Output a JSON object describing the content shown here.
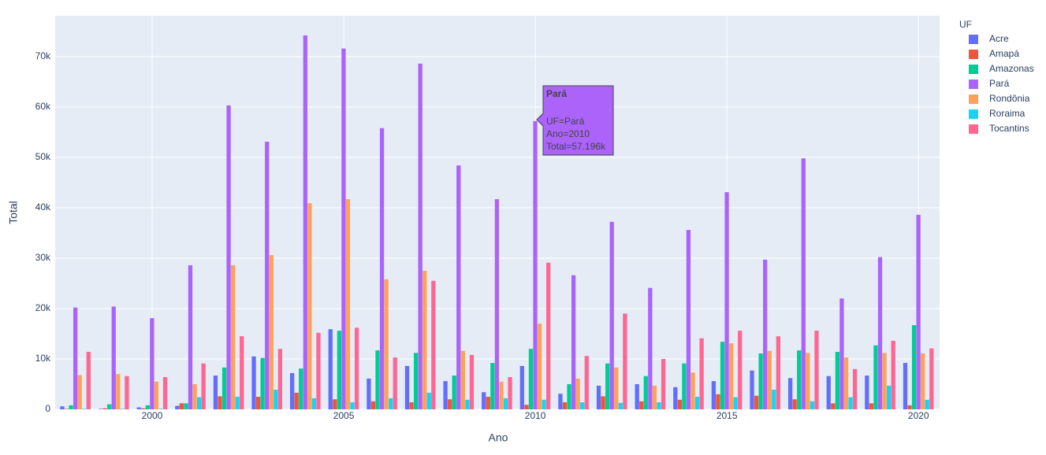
{
  "chart_data": {
    "type": "bar",
    "x": [
      1998,
      1999,
      2000,
      2001,
      2002,
      2003,
      2004,
      2005,
      2006,
      2007,
      2008,
      2009,
      2010,
      2011,
      2012,
      2013,
      2014,
      2015,
      2016,
      2017,
      2018,
      2019,
      2020
    ],
    "xlim": [
      1997.47,
      2020.55
    ],
    "xticks": [
      2000,
      2005,
      2010,
      2015,
      2020
    ],
    "ylim": [
      0,
      78100
    ],
    "yticks": [
      0,
      {
        "value": 10000,
        "label": "10k"
      },
      {
        "value": 20000,
        "label": "20k"
      },
      {
        "value": 30000,
        "label": "30k"
      },
      {
        "value": 40000,
        "label": "40k"
      },
      {
        "value": 50000,
        "label": "50k"
      },
      {
        "value": 60000,
        "label": "60k"
      },
      {
        "value": 70000,
        "label": "70k"
      }
    ],
    "x_label": "Ano",
    "y_label": "Total",
    "legend_title": "UF",
    "grid": true,
    "legend_position": "right",
    "series": [
      {
        "name": "Acre",
        "color": "#636efa",
        "values": [
          600,
          100,
          400,
          700,
          6700,
          10500,
          7200,
          15900,
          6100,
          8600,
          5600,
          3400,
          8600,
          3100,
          4700,
          5000,
          4400,
          5600,
          7700,
          6200,
          6600,
          6700,
          9200
        ]
      },
      {
        "name": "Amapá",
        "color": "#ef553b",
        "values": [
          100,
          200,
          200,
          1200,
          2600,
          2500,
          3300,
          2000,
          1600,
          1400,
          2000,
          2500,
          900,
          1400,
          2600,
          1600,
          1900,
          3000,
          2700,
          2000,
          1200,
          1200,
          800
        ]
      },
      {
        "name": "Amazonas",
        "color": "#00cc96",
        "values": [
          800,
          1000,
          800,
          1200,
          8300,
          10200,
          8100,
          15600,
          11700,
          11200,
          6700,
          9200,
          12000,
          5000,
          9100,
          6600,
          9100,
          13400,
          11100,
          11700,
          11400,
          12700,
          16700
        ]
      },
      {
        "name": "Pará",
        "color": "#ab63fa",
        "values": [
          20200,
          20400,
          18100,
          28600,
          60300,
          53100,
          74200,
          71600,
          55800,
          68600,
          48400,
          41700,
          57196,
          26600,
          37200,
          24100,
          35600,
          43100,
          29700,
          49800,
          22000,
          30200,
          38600
        ]
      },
      {
        "name": "Rondônia",
        "color": "#ffa15a",
        "values": [
          6800,
          7000,
          5500,
          5000,
          28600,
          30600,
          40900,
          41700,
          25800,
          27500,
          11600,
          5500,
          17000,
          6100,
          8300,
          4700,
          7300,
          13100,
          11600,
          11200,
          10300,
          11200,
          11100
        ]
      },
      {
        "name": "Roraima",
        "color": "#19d3f3",
        "values": [
          100,
          100,
          100,
          2400,
          2500,
          3900,
          2200,
          1400,
          2200,
          3300,
          1900,
          2200,
          1900,
          1400,
          1300,
          1400,
          2500,
          2400,
          3900,
          1600,
          2400,
          4700,
          1900
        ]
      },
      {
        "name": "Tocantins",
        "color": "#ff6692",
        "values": [
          11400,
          6600,
          6400,
          9100,
          14500,
          12000,
          15200,
          16200,
          10300,
          25500,
          10800,
          6400,
          29100,
          10600,
          19000,
          10000,
          14100,
          15600,
          14500,
          15600,
          8000,
          13600,
          12100
        ]
      }
    ]
  },
  "tooltip": {
    "title": "Pará",
    "lines": [
      "UF=Pará",
      "Ano=2010",
      "Total=57.196k"
    ]
  }
}
